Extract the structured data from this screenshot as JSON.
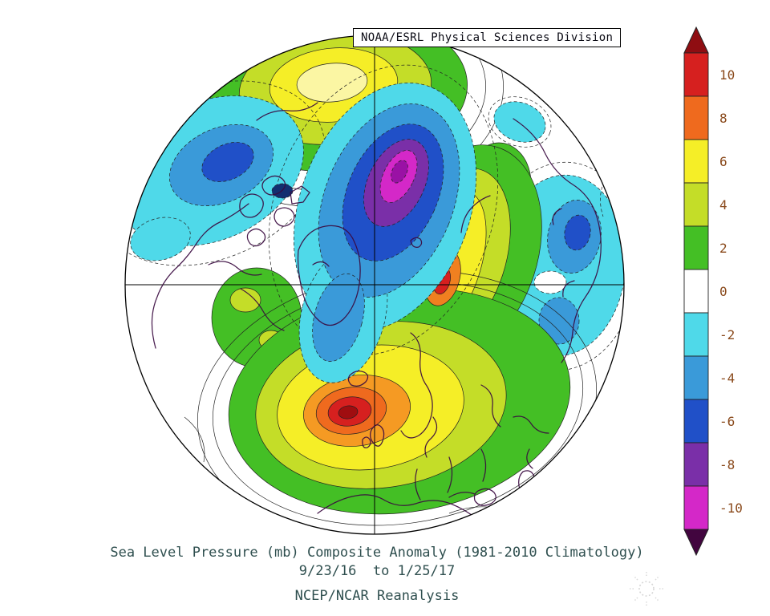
{
  "header": {
    "label": "NOAA/ESRL Physical Sciences Division"
  },
  "footer": {
    "line1": "Sea Level Pressure (mb) Composite Anomaly (1981-2010 Climatology)",
    "line2": "9/23/16  to 1/25/17",
    "line3": "NCEP/NCAR Reanalysis"
  },
  "colorbar": {
    "labels": [
      "10",
      "8",
      "6",
      "4",
      "2",
      "0",
      "-2",
      "-4",
      "-6",
      "-8",
      "-10"
    ],
    "band_colors": [
      "#d6201f",
      "#ef6a1e",
      "#f5ee27",
      "#c4dd28",
      "#44bf25",
      "#ffffff",
      "#4fd9e9",
      "#3a9ad9",
      "#2050c8",
      "#7a2fa8",
      "#d428c8"
    ],
    "arrow_top_color": "#8f0d12",
    "arrow_bottom_color": "#42053f",
    "label_color": "#8a4a1c",
    "units": "mb"
  },
  "chart_data": {
    "type": "heatmap",
    "title": "Sea Level Pressure (mb) Composite Anomaly (1981-2010 Climatology)",
    "period": "9/23/16 to 1/25/17",
    "dataset": "NCEP/NCAR Reanalysis",
    "provider": "NOAA/ESRL Physical Sciences Division",
    "variable": "Sea level pressure composite anomaly",
    "units": "mb",
    "map_style": "Northern Hemisphere polar stereographic disc with crosshair meridians, coastlines, filled contour anomalies",
    "colorbar_range": [
      -10,
      10
    ],
    "colorbar_ticks": [
      10,
      8,
      6,
      4,
      2,
      0,
      -2,
      -4,
      -6,
      -8,
      -10
    ],
    "contour_style": "solid contours for positive, dashed for negative",
    "anomaly_centers": [
      {
        "location": "central Arctic / north of Scandinavia",
        "sign": "negative",
        "approx_value_mb": -9,
        "core_color": "magenta"
      },
      {
        "location": "northeast Atlantic near Iceland / British Isles",
        "sign": "positive",
        "approx_value_mb": 9,
        "core_color": "dark red"
      },
      {
        "location": "Scandinavia (secondary maximum)",
        "sign": "positive",
        "approx_value_mb": 7,
        "core_color": "orange-red"
      },
      {
        "location": "top of disc (Pacific sector)",
        "sign": "positive",
        "approx_value_mb": 6,
        "core_color": "yellow"
      },
      {
        "location": "upper-left sector",
        "sign": "negative",
        "approx_value_mb": -5,
        "core_color": "dark blue"
      },
      {
        "location": "right sector (East Asia side)",
        "sign": "negative",
        "approx_value_mb": -4,
        "core_color": "blue"
      }
    ]
  }
}
